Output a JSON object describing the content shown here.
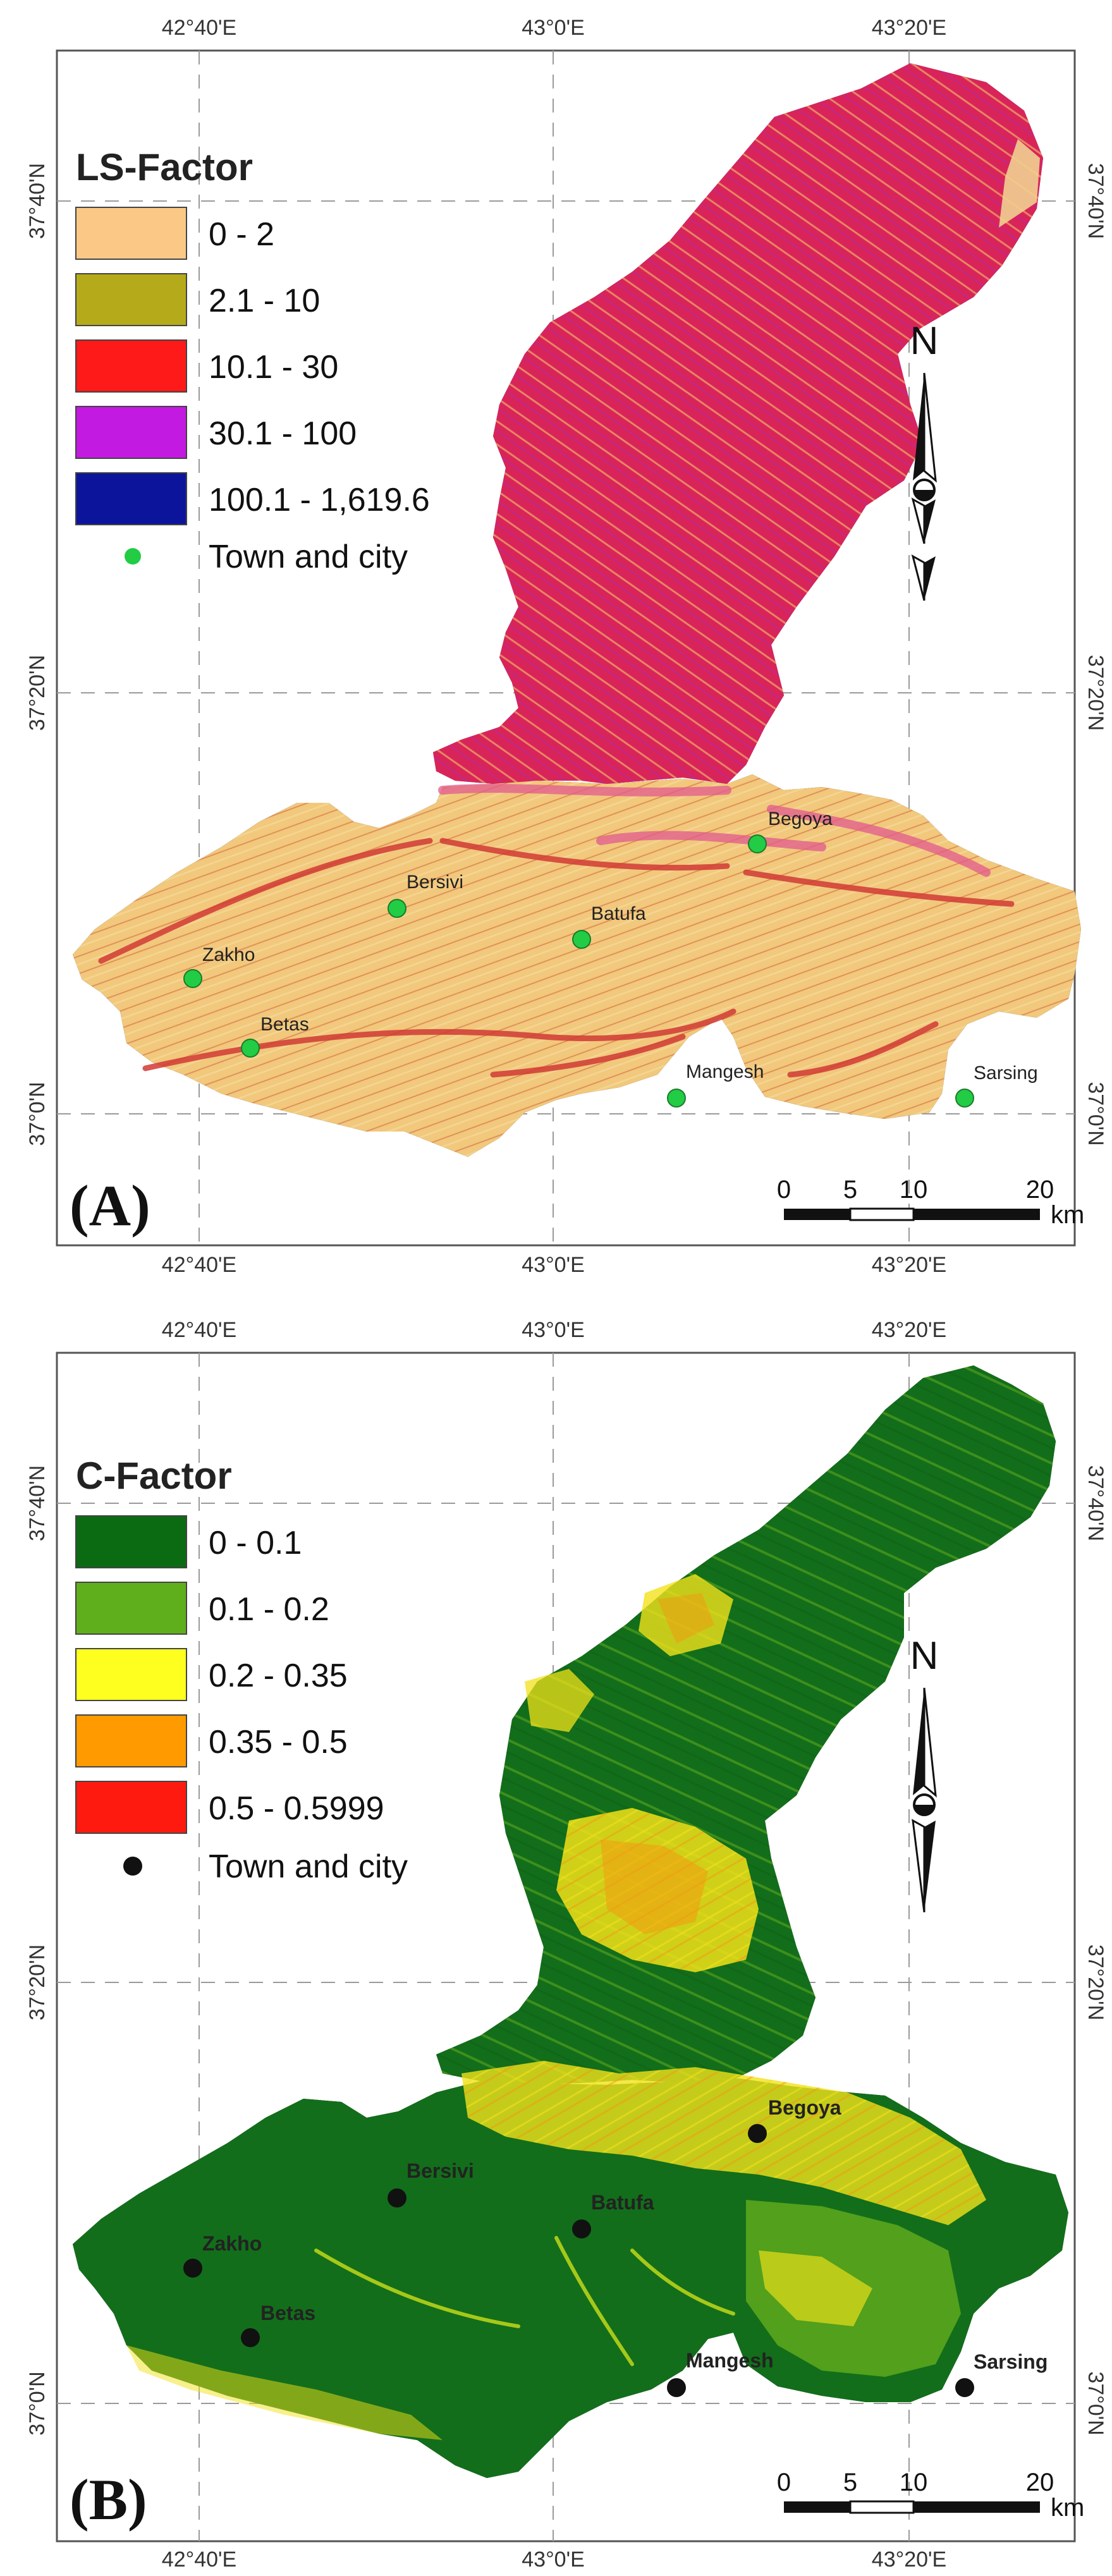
{
  "panels": [
    {
      "id": "A",
      "tag": "(A)",
      "legend": {
        "title": "LS-Factor",
        "items": [
          {
            "label": "0 - 2",
            "color": "#fbc985"
          },
          {
            "label": "2.1 - 10",
            "color": "#b5aa1a"
          },
          {
            "label": "10.1 - 30",
            "color": "#ff1a1a"
          },
          {
            "label": "30.1 - 100",
            "color": "#c21ae0"
          },
          {
            "label": "100.1 - 1,619.6",
            "color": "#0d149c"
          }
        ],
        "point_label": "Town and city",
        "point_color": "#22cc44"
      },
      "north_label": "N",
      "scale": {
        "ticks": [
          "0",
          "5",
          "10",
          "20"
        ],
        "unit": "km"
      },
      "lon_labels": [
        "42°40'E",
        "43°0'E",
        "43°20'E"
      ],
      "lat_labels": [
        "37°40'N",
        "37°20'N",
        "37°0'N"
      ],
      "towns": [
        "Begoya",
        "Bersivi",
        "Batufa",
        "Zakho",
        "Betas",
        "Mangesh",
        "Sarsing"
      ],
      "colors": {
        "north_area": "#d9245a",
        "south_area": "#f1c87c",
        "streak": "#cf4a3a",
        "pink_tint": "#e8407a"
      }
    },
    {
      "id": "B",
      "tag": "(B)",
      "legend": {
        "title": "C-Factor",
        "items": [
          {
            "label": "0 - 0.1",
            "color": "#0b6b12"
          },
          {
            "label": "0.1 - 0.2",
            "color": "#5fae1b"
          },
          {
            "label": "0.2 - 0.35",
            "color": "#ffff1f"
          },
          {
            "label": "0.35 - 0.5",
            "color": "#ff9a00"
          },
          {
            "label": "0.5 - 0.5999",
            "color": "#ff1a0f"
          }
        ],
        "point_label": "Town and city",
        "point_color": "#111111"
      },
      "north_label": "N",
      "scale": {
        "ticks": [
          "0",
          "5",
          "10",
          "20"
        ],
        "unit": "km"
      },
      "lon_labels": [
        "42°40'E",
        "43°0'E",
        "43°20'E"
      ],
      "lat_labels": [
        "37°40'N",
        "37°20'N",
        "37°0'N"
      ],
      "towns": [
        "Begoya",
        "Bersivi",
        "Batufa",
        "Zakho",
        "Betas",
        "Mangesh",
        "Sarsing"
      ],
      "colors": {
        "base": "#126e1a",
        "light": "#5aa51d",
        "yellow": "#f2e21a",
        "orange": "#f29a10"
      }
    }
  ]
}
